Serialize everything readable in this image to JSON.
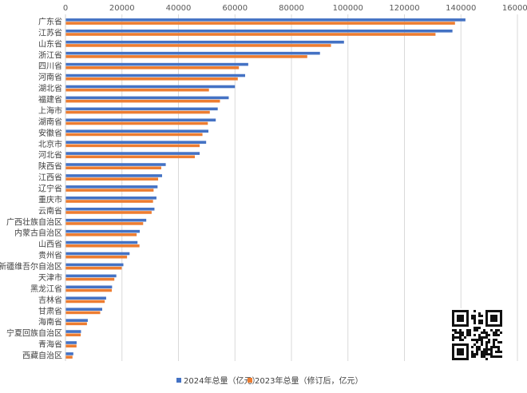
{
  "chart_data": {
    "type": "bar",
    "orientation": "horizontal",
    "xlim": [
      0,
      160000
    ],
    "xticks": [
      "0",
      "20000",
      "40000",
      "60000",
      "80000",
      "100000",
      "120000",
      "140000",
      "160000"
    ],
    "grid": true,
    "legend_position": "bottom",
    "categories": [
      "广东省",
      "江苏省",
      "山东省",
      "浙江省",
      "四川省",
      "河南省",
      "湖北省",
      "福建省",
      "上海市",
      "湖南省",
      "安徽省",
      "北京市",
      "河北省",
      "陕西省",
      "江西省",
      "辽宁省",
      "重庆市",
      "云南省",
      "广西壮族自治区",
      "内蒙古自治区",
      "山西省",
      "贵州省",
      "新疆维吾尔自治区",
      "天津市",
      "黑龙江省",
      "吉林省",
      "甘肃省",
      "海南省",
      "宁夏回族自治区",
      "青海省",
      "西藏自治区"
    ],
    "series": [
      {
        "name": "2024年总量（亿元）",
        "color": "#4472C4",
        "values": [
          141600,
          137000,
          98600,
          90100,
          64700,
          63600,
          60000,
          57800,
          53900,
          53200,
          50600,
          49800,
          47500,
          35500,
          34200,
          32600,
          32200,
          31500,
          28600,
          26300,
          25500,
          22700,
          20500,
          18000,
          16500,
          14400,
          13000,
          7900,
          5500,
          3950,
          2770
        ]
      },
      {
        "name": "2023年总量（修订后，亿元）",
        "color": "#ED7D31",
        "values": [
          137900,
          131000,
          94000,
          85600,
          61400,
          61000,
          50800,
          54700,
          51100,
          50400,
          48500,
          47500,
          45800,
          33900,
          32800,
          31200,
          31000,
          30500,
          27500,
          25200,
          26200,
          21800,
          19900,
          17300,
          16400,
          13900,
          12300,
          7600,
          5400,
          3900,
          2480
        ]
      }
    ]
  },
  "qr": {
    "icon": "qr-code-icon"
  }
}
